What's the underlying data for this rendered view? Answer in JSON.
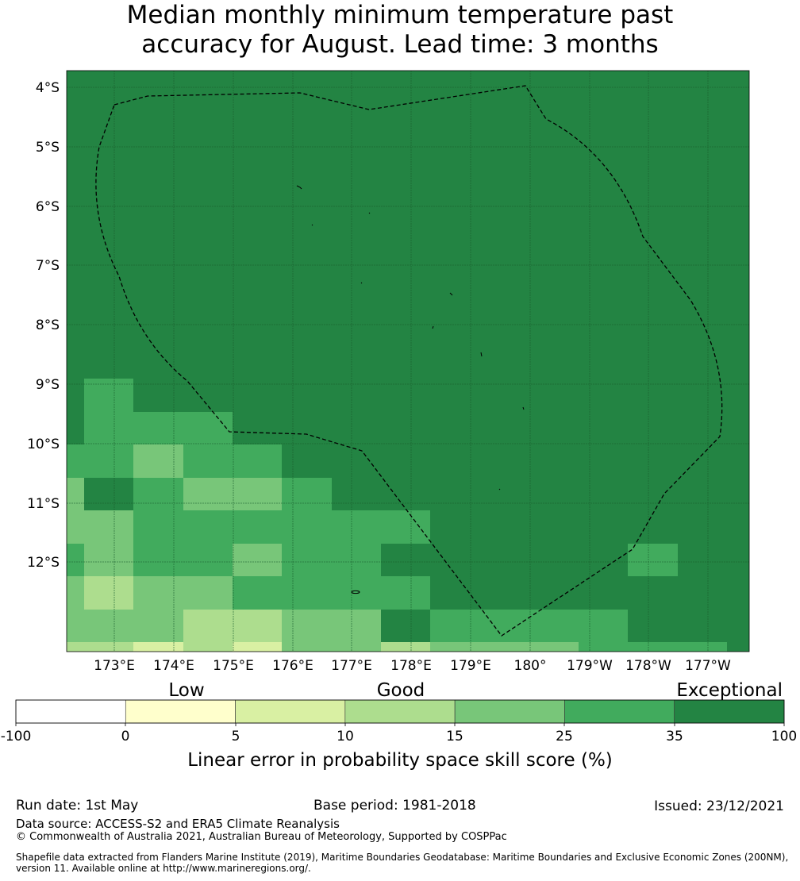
{
  "title_line1": "Median monthly minimum temperature past",
  "title_line2": "accuracy for August. Lead time: 3 months",
  "map": {
    "lat_labels": [
      "4°S",
      "5°S",
      "6°S",
      "7°S",
      "8°S",
      "9°S",
      "10°S",
      "11°S",
      "12°S"
    ],
    "lon_labels": [
      "173°E",
      "174°E",
      "175°E",
      "176°E",
      "177°E",
      "178°E",
      "179°E",
      "180°",
      "179°W",
      "178°W",
      "177°W"
    ],
    "boundary": "Maritime boundary (EEZ), dashed"
  },
  "colorbar": {
    "categories": [
      "Low",
      "Good",
      "Exceptional"
    ],
    "ticks": [
      "-100",
      "0",
      "5",
      "10",
      "15",
      "25",
      "35",
      "100"
    ],
    "colors": [
      "#ffffff",
      "#ffffcc",
      "#d9f0a3",
      "#addd8e",
      "#78c679",
      "#41ab5d",
      "#238443"
    ],
    "label": "Linear error in probability space skill score (%)"
  },
  "footer": {
    "run_date": "Run date: 1st May",
    "base_period": "Base period: 1981-2018",
    "issued": "Issued: 23/12/2021",
    "data_source": "Data source: ACCESS-S2 and ERA5 Climate Reanalysis",
    "copyright": "© Commonwealth of Australia 2021, Australian Bureau of Meteorology, Supported by COSPPac",
    "shapefile_line1": "Shapefile data extracted from Flanders Marine Institute (2019), Maritime Boundaries Geodatabase: Maritime Boundaries and Exclusive Economic Zones (200NM),",
    "shapefile_line2": "version 11. Available online at http://www.marineregions.org/."
  }
}
